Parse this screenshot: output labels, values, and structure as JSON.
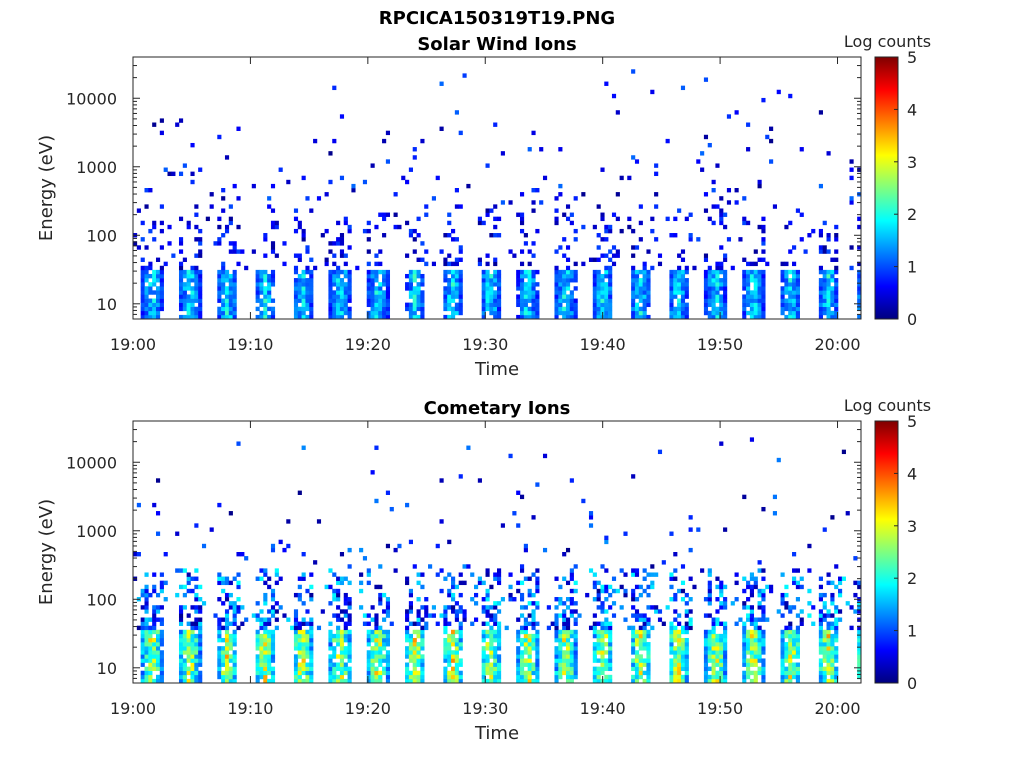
{
  "figure_title": "RPCICA150319T19.PNG",
  "colorbar": {
    "label": "Log counts",
    "min": 0,
    "max": 5,
    "ticks": [
      "0",
      "1",
      "2",
      "3",
      "4",
      "5"
    ],
    "colormap": "jet",
    "stops": [
      "#00007f",
      "#0000ff",
      "#007fff",
      "#00ffff",
      "#7fff7f",
      "#ffff00",
      "#ff7f00",
      "#ff0000",
      "#7f0000"
    ]
  },
  "chart_data": [
    {
      "type": "heatmap",
      "title": "Solar Wind Ions",
      "xlabel": "Time",
      "ylabel": "Energy (eV)",
      "x_tick_labels": [
        "19:00",
        "19:10",
        "19:20",
        "19:30",
        "19:40",
        "19:50",
        "20:00"
      ],
      "x_range_minutes": [
        0,
        62
      ],
      "x_ticks_minutes": [
        0,
        10,
        20,
        30,
        40,
        50,
        60
      ],
      "y_tick_labels": [
        "10",
        "100",
        "1000",
        "10000"
      ],
      "y_ticks_eV": [
        10,
        100,
        1000,
        10000
      ],
      "y_range_eV": [
        6,
        40000
      ],
      "y_scale": "log",
      "color_scale": "log counts 0-5",
      "sweep_period_minutes": 3.2,
      "low_energy_band_eV": [
        6,
        30
      ],
      "low_energy_band_peak_log_counts": 2.2,
      "scatter_upper_energy_eV": 40000
    },
    {
      "type": "heatmap",
      "title": "Cometary Ions",
      "xlabel": "Time",
      "ylabel": "Energy (eV)",
      "x_tick_labels": [
        "19:00",
        "19:10",
        "19:20",
        "19:30",
        "19:40",
        "19:50",
        "20:00"
      ],
      "x_range_minutes": [
        0,
        62
      ],
      "x_ticks_minutes": [
        0,
        10,
        20,
        30,
        40,
        50,
        60
      ],
      "y_tick_labels": [
        "10",
        "100",
        "1000",
        "10000"
      ],
      "y_ticks_eV": [
        10,
        100,
        1000,
        10000
      ],
      "y_range_eV": [
        6,
        40000
      ],
      "y_scale": "log",
      "color_scale": "log counts 0-5",
      "sweep_period_minutes": 3.2,
      "low_energy_band_eV": [
        6,
        35
      ],
      "low_energy_band_peak_log_counts": 3.6,
      "scatter_upper_energy_eV": 25000
    }
  ]
}
